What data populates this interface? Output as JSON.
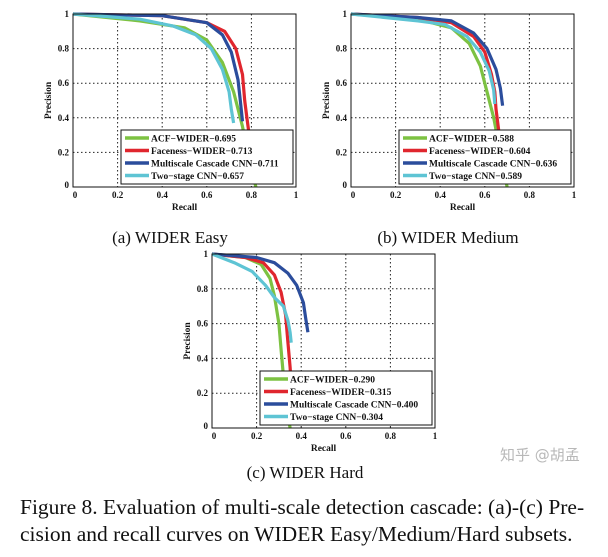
{
  "figure": {
    "caption_line1": "Figure 8. Evaluation of multi-scale detection cascade: (a)-(c) Pre-",
    "caption_line2": "cision and recall curves on WIDER Easy/Medium/Hard subsets.",
    "watermark": "知乎 @胡孟"
  },
  "colors": {
    "ACF": "#7dc242",
    "Faceness": "#e0262e",
    "Multiscale": "#2b4d9c",
    "TwoStage": "#5ec4d4"
  },
  "chart_data": [
    {
      "type": "line",
      "subcaption": "(a)  WIDER Easy",
      "xlabel": "Recall",
      "ylabel": "Precision",
      "xlim": [
        0,
        1
      ],
      "ylim": [
        0,
        1
      ],
      "xticks": [
        "0",
        "0.2",
        "0.4",
        "0.6",
        "0.8",
        "1"
      ],
      "yticks": [
        "0",
        "0.2",
        "0.4",
        "0.6",
        "0.8",
        "1"
      ],
      "grid": true,
      "legend_position": "bottom-right",
      "series": [
        {
          "name": "ACF−WIDER−0.695",
          "color": "#7dc242",
          "points": [
            [
              0,
              1
            ],
            [
              0.3,
              0.96
            ],
            [
              0.5,
              0.92
            ],
            [
              0.6,
              0.85
            ],
            [
              0.67,
              0.72
            ],
            [
              0.72,
              0.55
            ],
            [
              0.76,
              0.35
            ],
            [
              0.79,
              0.15
            ],
            [
              0.82,
              0
            ]
          ]
        },
        {
          "name": "Faceness−WIDER−0.713",
          "color": "#e0262e",
          "points": [
            [
              0,
              1
            ],
            [
              0.4,
              0.99
            ],
            [
              0.6,
              0.95
            ],
            [
              0.68,
              0.9
            ],
            [
              0.73,
              0.8
            ],
            [
              0.76,
              0.65
            ],
            [
              0.77,
              0.5
            ],
            [
              0.78,
              0.4
            ],
            [
              0.79,
              0.3
            ],
            [
              0.8,
              0.25
            ]
          ]
        },
        {
          "name": "Multiscale Cascade CNN−0.711",
          "color": "#2b4d9c",
          "points": [
            [
              0,
              1
            ],
            [
              0.4,
              0.99
            ],
            [
              0.6,
              0.95
            ],
            [
              0.67,
              0.88
            ],
            [
              0.71,
              0.78
            ],
            [
              0.74,
              0.62
            ],
            [
              0.75,
              0.5
            ],
            [
              0.76,
              0.38
            ]
          ]
        },
        {
          "name": "Two−stage CNN−0.657",
          "color": "#5ec4d4",
          "points": [
            [
              0,
              1
            ],
            [
              0.3,
              0.97
            ],
            [
              0.45,
              0.93
            ],
            [
              0.55,
              0.88
            ],
            [
              0.62,
              0.8
            ],
            [
              0.67,
              0.68
            ],
            [
              0.7,
              0.55
            ],
            [
              0.71,
              0.45
            ],
            [
              0.72,
              0.37
            ]
          ]
        }
      ]
    },
    {
      "type": "line",
      "subcaption": "(b)  WIDER Medium",
      "xlabel": "Recall",
      "ylabel": "Precision",
      "xlim": [
        0,
        1
      ],
      "ylim": [
        0,
        1
      ],
      "xticks": [
        "0",
        "0.2",
        "0.4",
        "0.6",
        "0.8",
        "1"
      ],
      "yticks": [
        "0",
        "0.2",
        "0.4",
        "0.6",
        "0.8",
        "1"
      ],
      "grid": true,
      "legend_position": "bottom-right",
      "series": [
        {
          "name": "ACF−WIDER−0.588",
          "color": "#7dc242",
          "points": [
            [
              0,
              1
            ],
            [
              0.3,
              0.97
            ],
            [
              0.45,
              0.92
            ],
            [
              0.53,
              0.83
            ],
            [
              0.58,
              0.7
            ],
            [
              0.61,
              0.55
            ],
            [
              0.64,
              0.4
            ],
            [
              0.67,
              0.2
            ],
            [
              0.7,
              0
            ]
          ]
        },
        {
          "name": "Faceness−WIDER−0.604",
          "color": "#e0262e",
          "points": [
            [
              0,
              1
            ],
            [
              0.3,
              0.98
            ],
            [
              0.45,
              0.95
            ],
            [
              0.55,
              0.87
            ],
            [
              0.6,
              0.78
            ],
            [
              0.63,
              0.65
            ],
            [
              0.645,
              0.55
            ],
            [
              0.65,
              0.45
            ],
            [
              0.66,
              0.35
            ],
            [
              0.67,
              0.25
            ]
          ]
        },
        {
          "name": "Multiscale Cascade CNN−0.636",
          "color": "#2b4d9c",
          "points": [
            [
              0,
              1
            ],
            [
              0.3,
              0.98
            ],
            [
              0.45,
              0.96
            ],
            [
              0.55,
              0.89
            ],
            [
              0.61,
              0.8
            ],
            [
              0.65,
              0.68
            ],
            [
              0.67,
              0.57
            ],
            [
              0.68,
              0.47
            ]
          ]
        },
        {
          "name": "Two−stage CNN−0.589",
          "color": "#5ec4d4",
          "points": [
            [
              0,
              1
            ],
            [
              0.3,
              0.96
            ],
            [
              0.42,
              0.94
            ],
            [
              0.52,
              0.87
            ],
            [
              0.58,
              0.78
            ],
            [
              0.62,
              0.67
            ],
            [
              0.64,
              0.56
            ],
            [
              0.645,
              0.48
            ]
          ]
        }
      ]
    },
    {
      "type": "line",
      "subcaption": "(c)  WIDER Hard",
      "xlabel": "Recall",
      "ylabel": "Precision",
      "xlim": [
        0,
        1
      ],
      "ylim": [
        0,
        1
      ],
      "xticks": [
        "0",
        "0.2",
        "0.4",
        "0.6",
        "0.8",
        "1"
      ],
      "yticks": [
        "0",
        "0.2",
        "0.4",
        "0.6",
        "0.8",
        "1"
      ],
      "grid": true,
      "legend_position": "bottom-right",
      "series": [
        {
          "name": "ACF−WIDER−0.290",
          "color": "#7dc242",
          "points": [
            [
              0,
              1
            ],
            [
              0.15,
              0.98
            ],
            [
              0.22,
              0.94
            ],
            [
              0.26,
              0.86
            ],
            [
              0.28,
              0.76
            ],
            [
              0.3,
              0.6
            ],
            [
              0.31,
              0.45
            ],
            [
              0.32,
              0.3
            ],
            [
              0.33,
              0.15
            ],
            [
              0.35,
              0
            ]
          ]
        },
        {
          "name": "Faceness−WIDER−0.315",
          "color": "#e0262e",
          "points": [
            [
              0,
              1
            ],
            [
              0.15,
              0.98
            ],
            [
              0.23,
              0.95
            ],
            [
              0.28,
              0.88
            ],
            [
              0.31,
              0.78
            ],
            [
              0.33,
              0.65
            ],
            [
              0.34,
              0.5
            ],
            [
              0.35,
              0.35
            ],
            [
              0.355,
              0.25
            ]
          ]
        },
        {
          "name": "Multiscale Cascade CNN−0.400",
          "color": "#2b4d9c",
          "points": [
            [
              0,
              1
            ],
            [
              0.2,
              0.98
            ],
            [
              0.28,
              0.95
            ],
            [
              0.34,
              0.89
            ],
            [
              0.38,
              0.82
            ],
            [
              0.41,
              0.72
            ],
            [
              0.42,
              0.63
            ],
            [
              0.43,
              0.55
            ]
          ]
        },
        {
          "name": "Two−stage CNN−0.304",
          "color": "#5ec4d4",
          "points": [
            [
              0,
              1
            ],
            [
              0.1,
              0.95
            ],
            [
              0.18,
              0.9
            ],
            [
              0.24,
              0.82
            ],
            [
              0.28,
              0.75
            ],
            [
              0.32,
              0.7
            ],
            [
              0.34,
              0.62
            ],
            [
              0.35,
              0.55
            ],
            [
              0.355,
              0.49
            ]
          ]
        }
      ]
    }
  ]
}
